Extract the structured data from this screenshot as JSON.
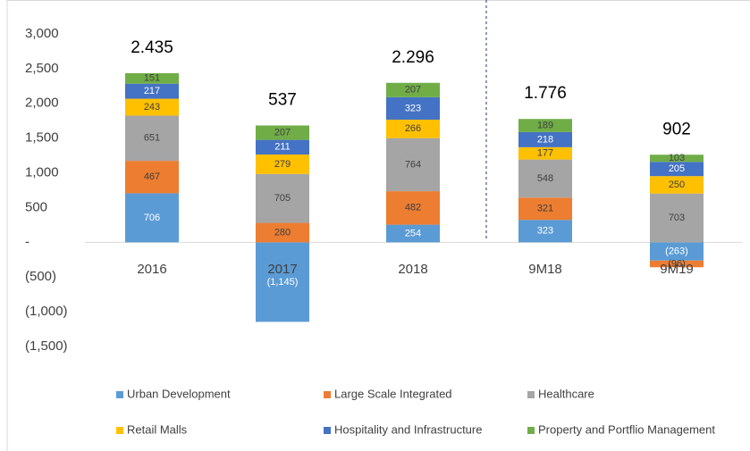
{
  "chart_data": {
    "type": "bar",
    "stacked": true,
    "categories": [
      "2016",
      "2017",
      "2018",
      "9M18",
      "9M19"
    ],
    "series": [
      {
        "name": "Urban Development",
        "color": "#5b9bd5",
        "values": [
          706,
          -1145,
          254,
          323,
          -263
        ],
        "value_labels": [
          "706",
          "(1,145)",
          "254",
          "323",
          "(263)"
        ]
      },
      {
        "name": "Large Scale Integrated",
        "color": "#ed7d31",
        "values": [
          467,
          280,
          482,
          321,
          -96
        ],
        "value_labels": [
          "467",
          "280",
          "482",
          "321",
          "(96)"
        ]
      },
      {
        "name": "Healthcare",
        "color": "#a5a5a5",
        "values": [
          651,
          705,
          764,
          548,
          703
        ]
      },
      {
        "name": "Retail Malls",
        "color": "#ffc000",
        "values": [
          243,
          279,
          266,
          177,
          250
        ]
      },
      {
        "name": "Hospitality and Infrastructure",
        "color": "#4472c4",
        "values": [
          217,
          211,
          323,
          218,
          205
        ]
      },
      {
        "name": "Property and Portflio Management",
        "color": "#70ad47",
        "values": [
          151,
          207,
          207,
          189,
          103
        ]
      }
    ],
    "totals": {
      "values": [
        2435,
        537,
        2296,
        1776,
        902
      ],
      "value_labels": [
        "2.435",
        "537",
        "2.296",
        "1.776",
        "902"
      ]
    },
    "ylim": [
      -1500,
      3000
    ],
    "yticks": [
      {
        "value": 3000,
        "label": "3,000"
      },
      {
        "value": 2500,
        "label": "2,500"
      },
      {
        "value": 2000,
        "label": "2,000"
      },
      {
        "value": 1500,
        "label": "1,500"
      },
      {
        "value": 1000,
        "label": "1,000"
      },
      500,
      {
        "value": 0,
        "label": "-"
      },
      {
        "value": -500,
        "label": "(500)"
      },
      {
        "value": -1000,
        "label": "(1,000)"
      },
      {
        "value": -1500,
        "label": "(1,500)"
      }
    ]
  }
}
